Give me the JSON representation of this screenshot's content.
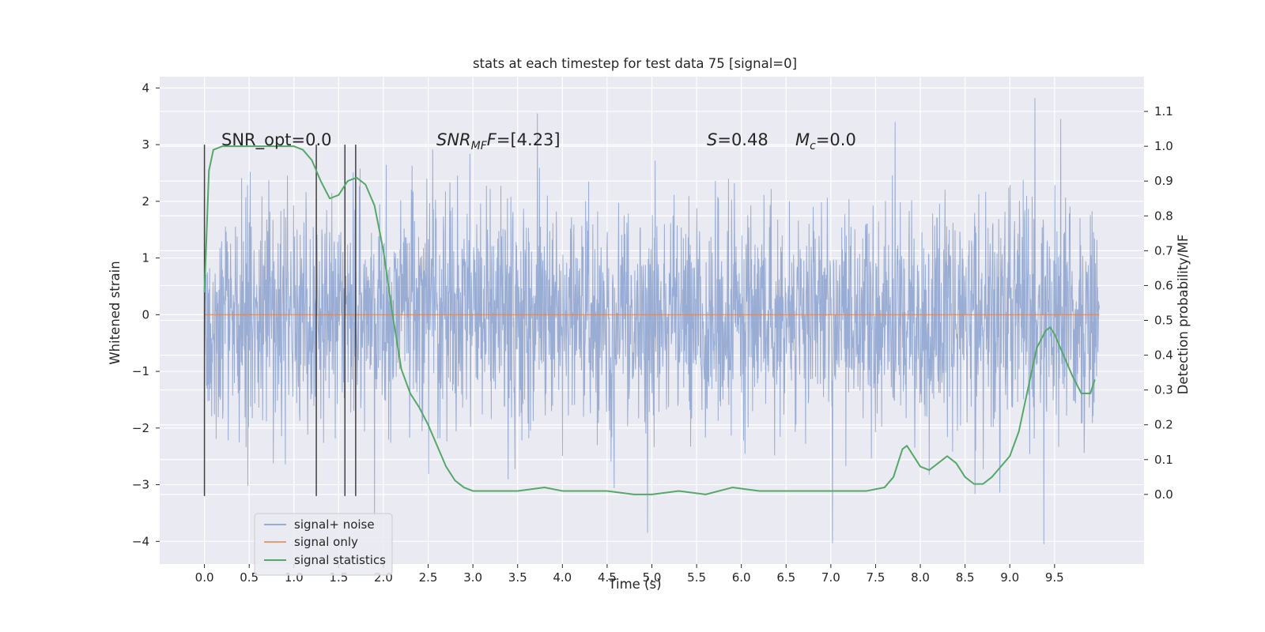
{
  "chart_data": {
    "type": "line",
    "title": "stats at each timestep for test data 75 [signal=0]",
    "xlabel": "Time (s)",
    "ylabel": "Whitened strain",
    "ylabel_right": "Detection probability/MF",
    "xlim": [
      -0.5,
      10.5
    ],
    "ylim": [
      -4.4,
      4.2
    ],
    "y2lim": [
      -0.2,
      1.2
    ],
    "x_ticks": [
      "0.0",
      "0.5",
      "1.0",
      "1.5",
      "2.0",
      "2.5",
      "3.0",
      "3.5",
      "4.0",
      "4.5",
      "5.0",
      "5.5",
      "6.0",
      "6.5",
      "7.0",
      "7.5",
      "8.0",
      "8.5",
      "9.0",
      "9.5"
    ],
    "y_ticks": [
      "−4",
      "−3",
      "−2",
      "−1",
      "0",
      "1",
      "2",
      "3",
      "4"
    ],
    "y2_ticks": [
      "0.0",
      "0.1",
      "0.2",
      "0.3",
      "0.4",
      "0.5",
      "0.6",
      "0.7",
      "0.8",
      "0.9",
      "1.0",
      "1.1"
    ],
    "annotations": {
      "snr_opt": "SNR_opt=0.0",
      "snr_mf_sym": "SNR",
      "snr_mf_sub": "MF",
      "snr_mf_val": "=[4.23]",
      "s_sym": "S",
      "s_val": "=0.48",
      "mc_sym": "M",
      "mc_sub": "c",
      "mc_val": "=0.0"
    },
    "vlines_x": [
      0.0,
      1.25,
      1.57,
      1.69
    ],
    "vline_range": [
      -3.2,
      3.0
    ],
    "grid": true,
    "legend_position": "lower-left",
    "colors": {
      "signal_noise": "#7e97c8",
      "signal_only": "#dd8452",
      "statistics": "#55a868",
      "background": "#eaeaf2",
      "vline": "#404040"
    },
    "series": [
      {
        "name": "signal+ noise",
        "summary": "whitened strain noise trace, 0-10 s, values mostly within -2 to 2, spikes to about 3.8 and -4.0",
        "x_range": [
          0.0,
          10.0
        ],
        "peaks_high": [
          [
            3.72,
            3.55
          ],
          [
            9.28,
            3.82
          ],
          [
            9.57,
            3.45
          ],
          [
            7.72,
            3.4
          ]
        ],
        "peaks_low": [
          [
            9.38,
            -4.05
          ],
          [
            7.02,
            -4.03
          ],
          [
            4.95,
            -3.85
          ],
          [
            1.9,
            -3.55
          ]
        ]
      },
      {
        "name": "signal only",
        "x": [
          0.0,
          10.0
        ],
        "y": [
          0.0,
          0.0
        ]
      },
      {
        "name": "signal statistics",
        "axis": "right",
        "x": [
          0.0,
          0.05,
          0.1,
          0.2,
          0.3,
          0.5,
          0.8,
          1.0,
          1.1,
          1.2,
          1.3,
          1.4,
          1.5,
          1.6,
          1.7,
          1.8,
          1.9,
          2.0,
          2.1,
          2.2,
          2.3,
          2.4,
          2.5,
          2.6,
          2.7,
          2.8,
          2.9,
          3.0,
          3.2,
          3.5,
          3.8,
          4.0,
          4.2,
          4.5,
          4.8,
          5.0,
          5.3,
          5.6,
          5.9,
          6.2,
          6.5,
          6.8,
          7.1,
          7.4,
          7.6,
          7.7,
          7.8,
          7.85,
          7.9,
          8.0,
          8.1,
          8.2,
          8.3,
          8.4,
          8.5,
          8.6,
          8.7,
          8.8,
          8.9,
          9.0,
          9.1,
          9.2,
          9.3,
          9.4,
          9.45,
          9.5,
          9.6,
          9.7,
          9.8,
          9.9,
          9.95
        ],
        "y": [
          0.58,
          0.93,
          0.99,
          1.0,
          1.0,
          1.0,
          1.0,
          1.0,
          0.99,
          0.96,
          0.9,
          0.85,
          0.86,
          0.9,
          0.91,
          0.89,
          0.83,
          0.7,
          0.52,
          0.36,
          0.29,
          0.25,
          0.2,
          0.14,
          0.08,
          0.04,
          0.02,
          0.01,
          0.01,
          0.01,
          0.02,
          0.01,
          0.01,
          0.01,
          0.0,
          0.0,
          0.01,
          0.0,
          0.02,
          0.01,
          0.01,
          0.01,
          0.01,
          0.01,
          0.02,
          0.05,
          0.13,
          0.14,
          0.12,
          0.08,
          0.07,
          0.09,
          0.11,
          0.09,
          0.05,
          0.03,
          0.03,
          0.05,
          0.08,
          0.11,
          0.18,
          0.3,
          0.42,
          0.47,
          0.48,
          0.46,
          0.4,
          0.34,
          0.29,
          0.29,
          0.33
        ]
      }
    ]
  }
}
